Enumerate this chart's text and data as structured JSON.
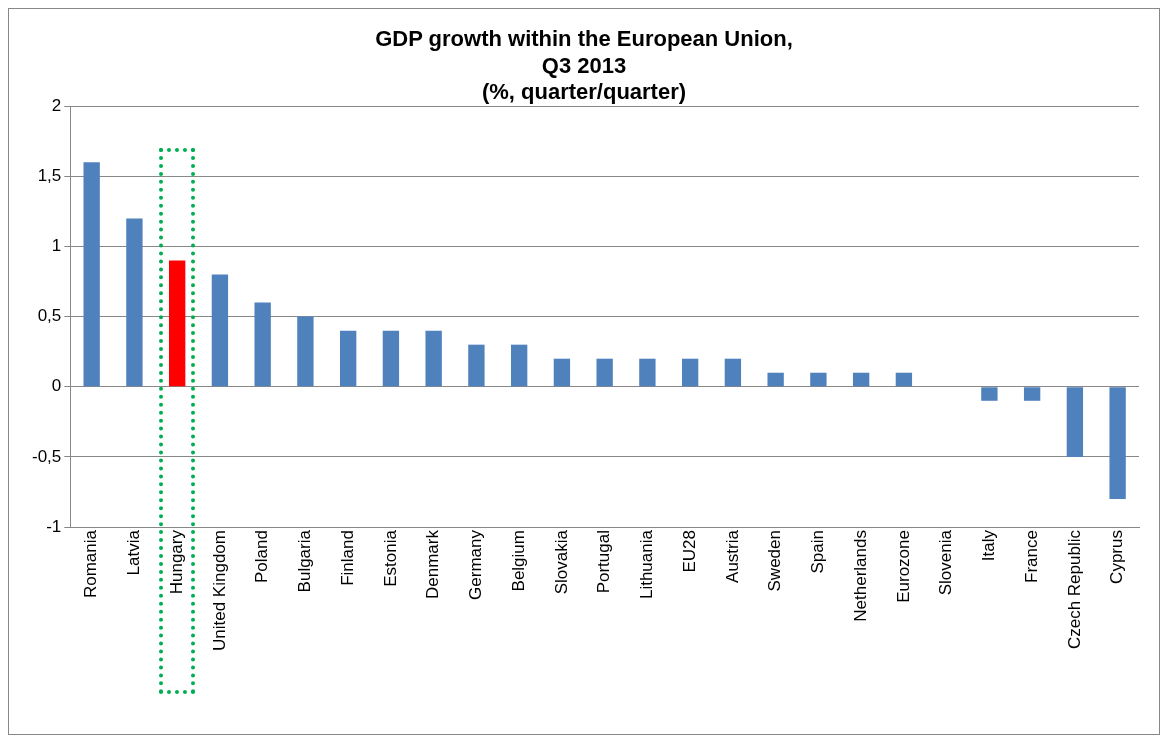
{
  "chart_data": {
    "type": "bar",
    "title": "GDP growth within the European Union,\nQ3 2013\n(%, quarter/quarter)",
    "categories": [
      "Romania",
      "Latvia",
      "Hungary",
      "United Kingdom",
      "Poland",
      "Bulgaria",
      "Finland",
      "Estonia",
      "Denmark",
      "Germany",
      "Belgium",
      "Slovakia",
      "Portugal",
      "Lithuania",
      "EU28",
      "Austria",
      "Sweden",
      "Spain",
      "Netherlands",
      "Eurozone",
      "Slovenia",
      "Italy",
      "France",
      "Czech Republic",
      "Cyprus"
    ],
    "values": [
      1.6,
      1.2,
      0.9,
      0.8,
      0.6,
      0.5,
      0.4,
      0.4,
      0.4,
      0.3,
      0.3,
      0.2,
      0.2,
      0.2,
      0.2,
      0.2,
      0.1,
      0.1,
      0.1,
      0.1,
      0,
      -0.1,
      -0.1,
      -0.5,
      -0.8
    ],
    "colors": [
      "#4f81bd",
      "#4f81bd",
      "#ff0000",
      "#4f81bd",
      "#4f81bd",
      "#4f81bd",
      "#4f81bd",
      "#4f81bd",
      "#4f81bd",
      "#4f81bd",
      "#4f81bd",
      "#4f81bd",
      "#4f81bd",
      "#4f81bd",
      "#4f81bd",
      "#4f81bd",
      "#4f81bd",
      "#4f81bd",
      "#4f81bd",
      "#4f81bd",
      "#4f81bd",
      "#4f81bd",
      "#4f81bd",
      "#4f81bd",
      "#4f81bd"
    ],
    "ylim": [
      -1,
      2
    ],
    "yticks": [
      -1,
      {
        "value": -0.5,
        "label": "-0,5"
      },
      0,
      {
        "value": 0.5,
        "label": "0,5"
      },
      1,
      {
        "value": 1.5,
        "label": "1,5"
      },
      2
    ],
    "grid": "y",
    "legend": false
  }
}
